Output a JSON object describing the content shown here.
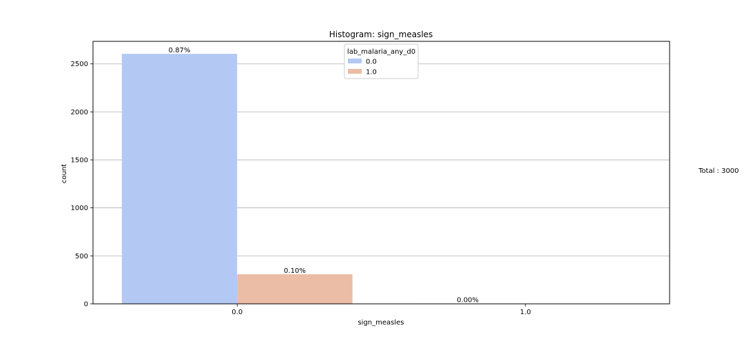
{
  "chart_data": {
    "type": "bar",
    "title": "Histogram: sign_measles",
    "xlabel": "sign_measles",
    "ylabel": "count",
    "categories": [
      "0.0",
      "1.0"
    ],
    "legend": {
      "title": "lab_malaria_any_d0",
      "position": "upper-center"
    },
    "series": [
      {
        "name": "0.0",
        "color": "#b3c9f4",
        "values": [
          2605,
          4
        ],
        "labels": [
          "0.87%",
          "0.00%"
        ]
      },
      {
        "name": "1.0",
        "color": "#ebbca6",
        "values": [
          308,
          0
        ],
        "labels": [
          "0.10%",
          ""
        ]
      }
    ],
    "ylim": [
      0,
      2735
    ],
    "yticks": [
      0,
      500,
      1000,
      1500,
      2000,
      2500
    ],
    "grid": "horizontal",
    "annotation": "Total : 3000"
  }
}
